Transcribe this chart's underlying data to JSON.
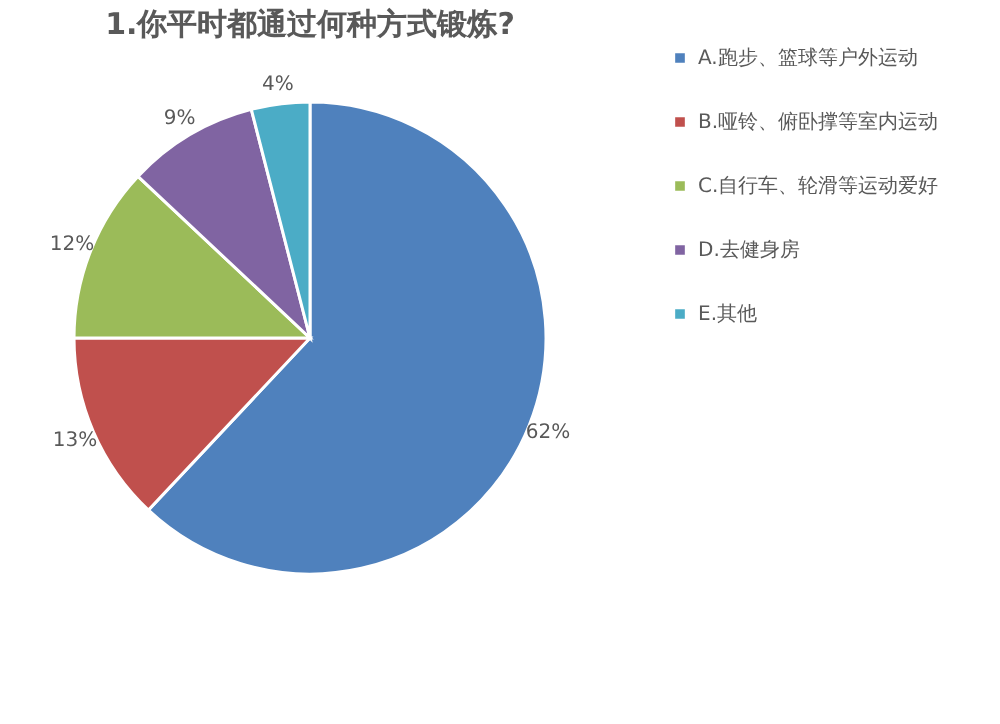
{
  "chart_data": {
    "type": "pie",
    "title": "1.你平时都通过何种方式锻炼?",
    "categories": [
      "A.跑步、篮球等户外运动",
      "B.哑铃、俯卧撑等室内运动",
      "C.自行车、轮滑等运动爱好",
      "D.去健身房",
      "E.其他"
    ],
    "values": [
      62,
      13,
      12,
      9,
      4
    ],
    "colors": [
      "#4f81bd",
      "#c0504d",
      "#9bbb59",
      "#8064a2",
      "#4bacc6"
    ],
    "value_labels": [
      "62%",
      "13%",
      "12%",
      "9%",
      "4%"
    ],
    "legend": "right"
  }
}
